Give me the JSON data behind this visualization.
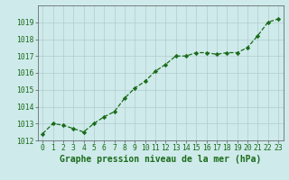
{
  "x": [
    0,
    1,
    2,
    3,
    4,
    5,
    6,
    7,
    8,
    9,
    10,
    11,
    12,
    13,
    14,
    15,
    16,
    17,
    18,
    19,
    20,
    21,
    22,
    23
  ],
  "y": [
    1012.4,
    1013.0,
    1012.9,
    1012.7,
    1012.5,
    1013.0,
    1013.4,
    1013.7,
    1014.5,
    1015.1,
    1015.5,
    1016.1,
    1016.5,
    1017.0,
    1017.0,
    1017.2,
    1017.2,
    1017.1,
    1017.2,
    1017.2,
    1017.5,
    1018.2,
    1019.0,
    1019.2
  ],
  "line_color": "#1a6b1a",
  "marker": "D",
  "marker_size": 2.2,
  "bg_color": "#ceeaea",
  "grid_color": "#b0cccc",
  "xlabel": "Graphe pression niveau de la mer (hPa)",
  "xlabel_color": "#1a6b1a",
  "xlabel_fontsize": 7.0,
  "tick_color": "#1a6b1a",
  "tick_fontsize": 5.8,
  "ylim": [
    1012,
    1020
  ],
  "yticks": [
    1012,
    1013,
    1014,
    1015,
    1016,
    1017,
    1018,
    1019
  ],
  "xlim": [
    -0.5,
    23.5
  ],
  "xticks": [
    0,
    1,
    2,
    3,
    4,
    5,
    6,
    7,
    8,
    9,
    10,
    11,
    12,
    13,
    14,
    15,
    16,
    17,
    18,
    19,
    20,
    21,
    22,
    23
  ],
  "line_width": 0.9
}
